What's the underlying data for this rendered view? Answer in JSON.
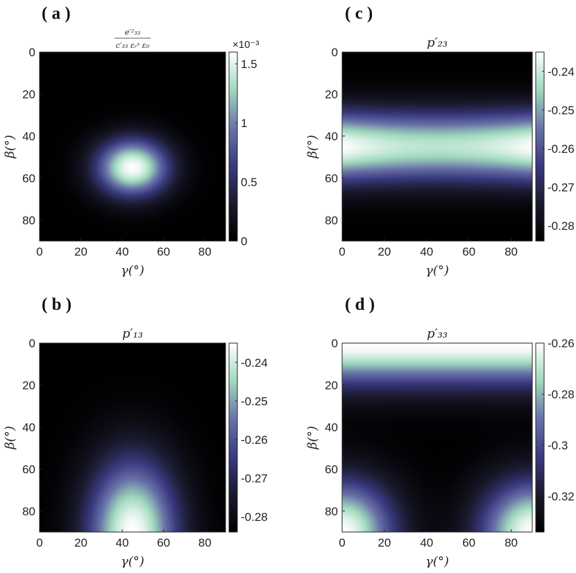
{
  "colormap": [
    "#000000",
    "#1a1a2e",
    "#3a3a80",
    "#6a73a8",
    "#9fd9bd",
    "#ffffff"
  ],
  "chart_data": [
    {
      "panel": "(a)",
      "type": "heatmap",
      "title": "e'33^2 / (c'33 εr^S ε0)",
      "title_num": "e′²₃₃",
      "title_den": "c′₃₃ εᵣˢ ε₀",
      "xlabel": "γ(°)",
      "ylabel": "β(°)",
      "x_range": [
        0,
        90
      ],
      "y_range": [
        0,
        90
      ],
      "y_reversed": true,
      "x_ticks": [
        "0",
        "20",
        "40",
        "60",
        "80"
      ],
      "y_ticks": [
        "0",
        "20",
        "40",
        "60",
        "80"
      ],
      "colorbar": {
        "min": 0,
        "max": 1.6,
        "ticks": [
          "0",
          "0.5",
          "1",
          "1.5"
        ],
        "tick_values": [
          0,
          0.5,
          1,
          1.5
        ],
        "exponent_label": "×10⁻³"
      },
      "description_of_field": {
        "peak_at": [
          45,
          55
        ],
        "peak_value": 1.6,
        "sigma_gamma": 18,
        "sigma_beta": 14
      }
    },
    {
      "panel": "(c)",
      "type": "heatmap",
      "title": "p'23",
      "title_text": "p′₂₃",
      "xlabel": "γ(°)",
      "ylabel": "β(°)",
      "x_range": [
        0,
        90
      ],
      "y_range": [
        0,
        90
      ],
      "y_reversed": true,
      "x_ticks": [
        "0",
        "20",
        "40",
        "60",
        "80"
      ],
      "y_ticks": [
        "0",
        "20",
        "40",
        "60",
        "80"
      ],
      "colorbar": {
        "min": -0.284,
        "max": -0.235,
        "ticks": [
          "-0.24",
          "-0.25",
          "-0.26",
          "-0.27",
          "-0.28"
        ],
        "tick_values": [
          -0.24,
          -0.25,
          -0.26,
          -0.27,
          -0.28
        ]
      }
    },
    {
      "panel": "(b)",
      "type": "heatmap",
      "title": "p'13",
      "title_text": "p′₁₃",
      "xlabel": "γ(°)",
      "ylabel": "β(°)",
      "x_range": [
        0,
        90
      ],
      "y_range": [
        0,
        90
      ],
      "y_reversed": true,
      "x_ticks": [
        "0",
        "20",
        "40",
        "60",
        "80"
      ],
      "y_ticks": [
        "0",
        "20",
        "40",
        "60",
        "80"
      ],
      "colorbar": {
        "min": -0.284,
        "max": -0.235,
        "ticks": [
          "-0.24",
          "-0.25",
          "-0.26",
          "-0.27",
          "-0.28"
        ],
        "tick_values": [
          -0.24,
          -0.25,
          -0.26,
          -0.27,
          -0.28
        ]
      }
    },
    {
      "panel": "(d)",
      "type": "heatmap",
      "title": "p'33",
      "title_text": "p′₃₃",
      "xlabel": "γ(°)",
      "ylabel": "β(°)",
      "x_range": [
        0,
        90
      ],
      "y_range": [
        0,
        90
      ],
      "y_reversed": true,
      "x_ticks": [
        "0",
        "20",
        "40",
        "60",
        "80"
      ],
      "y_ticks": [
        "0",
        "20",
        "40",
        "60",
        "80"
      ],
      "colorbar": {
        "min": -0.334,
        "max": -0.26,
        "ticks": [
          "-0.26",
          "-0.28",
          "-0.3",
          "-0.32"
        ],
        "tick_values": [
          -0.26,
          -0.28,
          -0.3,
          -0.32
        ]
      }
    }
  ],
  "panel_labels": [
    "( a )",
    "( c )",
    "( b )",
    "( d )"
  ]
}
